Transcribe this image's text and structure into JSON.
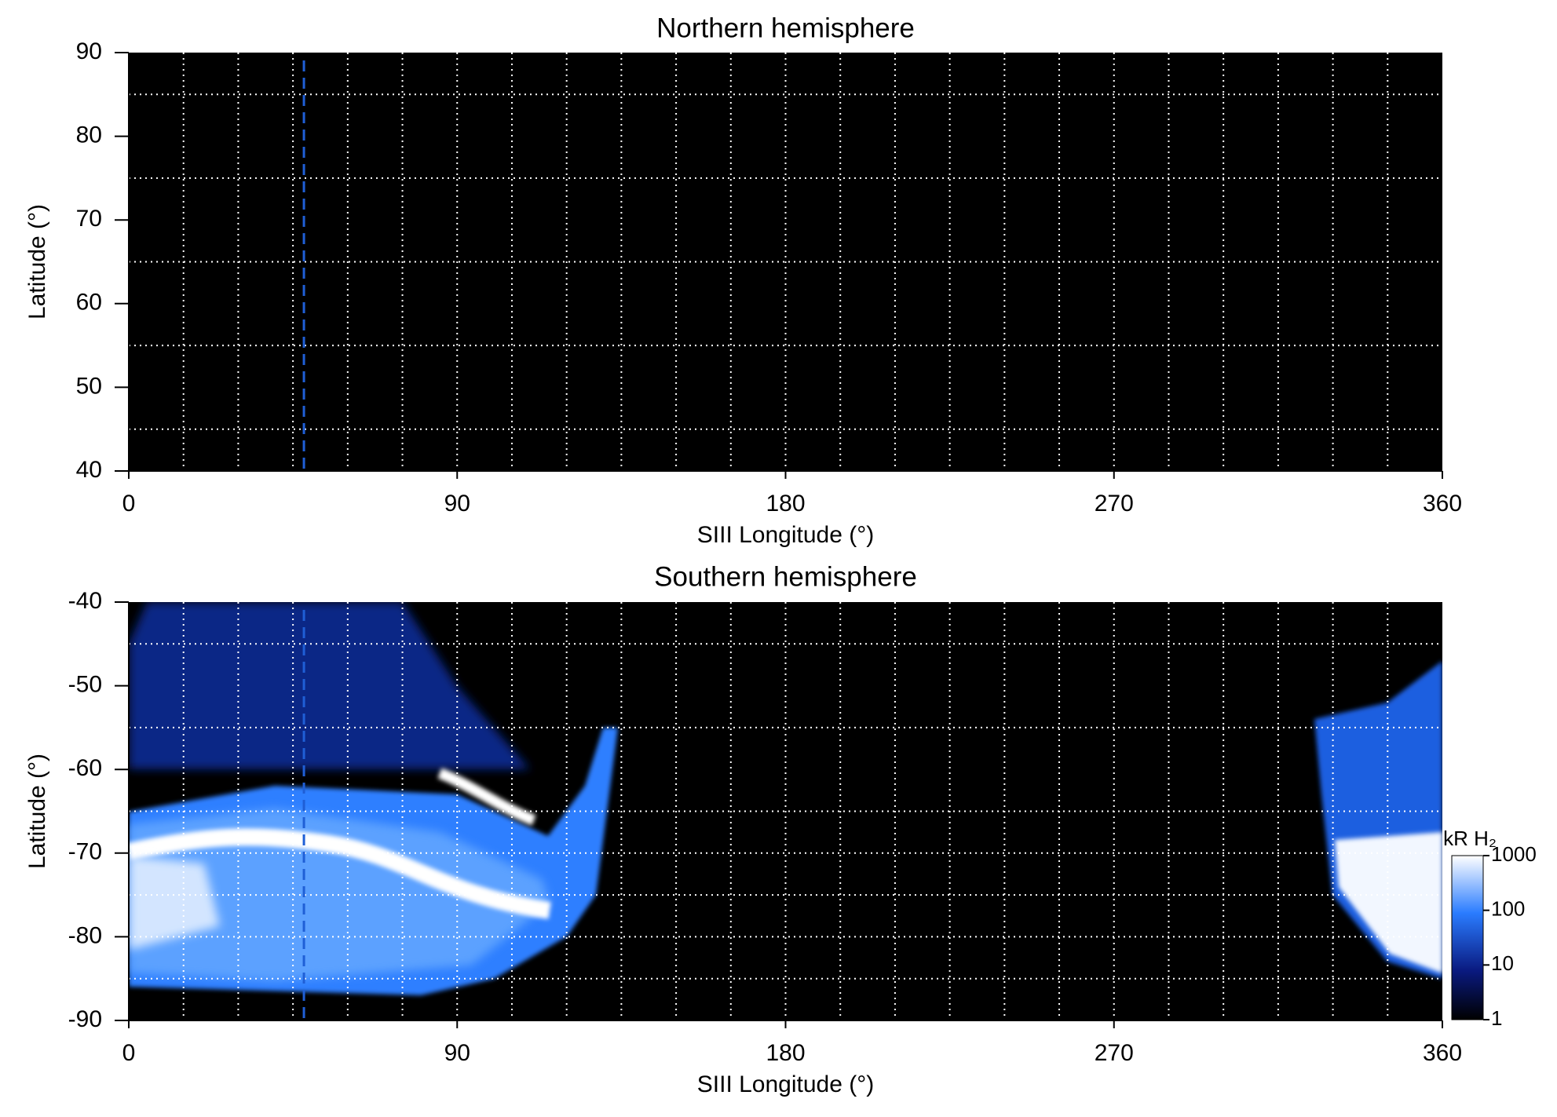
{
  "chart_data": [
    {
      "type": "heatmap",
      "title": "Northern hemisphere",
      "xlabel": "SIII Longitude (°)",
      "ylabel": "Latitude (°)",
      "xlim": [
        0,
        360
      ],
      "xticks": [
        0,
        90,
        180,
        270,
        360
      ],
      "ylim": [
        40,
        90
      ],
      "yticks": [
        40,
        50,
        60,
        70,
        80,
        90
      ],
      "xgrid": [
        15,
        30,
        45,
        60,
        75,
        90,
        105,
        120,
        135,
        150,
        165,
        180,
        195,
        210,
        225,
        240,
        255,
        270,
        285,
        300,
        315,
        330,
        345
      ],
      "ygrid": [
        45,
        55,
        65,
        75,
        85
      ],
      "vlines": [
        48
      ],
      "vline_color": "#1f5fd6",
      "grid_color": "#ffffff"
    },
    {
      "type": "heatmap",
      "title": "Southern hemisphere",
      "xlabel": "SIII Longitude (°)",
      "ylabel": "Latitude (°)",
      "xlim": [
        0,
        360
      ],
      "xticks": [
        0,
        90,
        180,
        270,
        360
      ],
      "ylim": [
        -90,
        -40
      ],
      "yticks": [
        -90,
        -80,
        -70,
        -60,
        -50,
        -40
      ],
      "xgrid": [
        15,
        30,
        45,
        60,
        75,
        90,
        105,
        120,
        135,
        150,
        165,
        180,
        195,
        210,
        225,
        240,
        255,
        270,
        285,
        300,
        315,
        330,
        345
      ],
      "ygrid": [
        -45,
        -55,
        -65,
        -70,
        -75,
        -80,
        -85
      ],
      "vlines": [
        48
      ],
      "vline_color": "#1f5fd6",
      "grid_color": "#ffffff",
      "colorbar": {
        "label": "kR H₂",
        "lim": [
          1,
          1000
        ],
        "ticks": [
          1,
          10,
          100,
          1000
        ],
        "log": true
      }
    }
  ]
}
